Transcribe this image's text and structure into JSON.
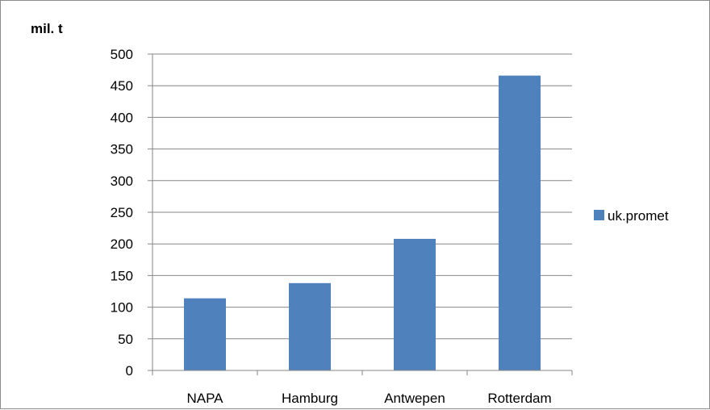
{
  "chart_data": {
    "type": "bar",
    "ylabel": "mil. t",
    "xlabel": "",
    "categories": [
      "NAPA",
      "Hamburg",
      "Antwepen",
      "Rotterdam"
    ],
    "series": [
      {
        "name": "uk.promet",
        "color": "#4F81BD",
        "values": [
          114,
          138,
          208,
          466
        ]
      }
    ],
    "ylim": [
      0,
      500
    ],
    "yticks": [
      0,
      50,
      100,
      150,
      200,
      250,
      300,
      350,
      400,
      450,
      500
    ],
    "grid": true,
    "legend_position": "right"
  }
}
